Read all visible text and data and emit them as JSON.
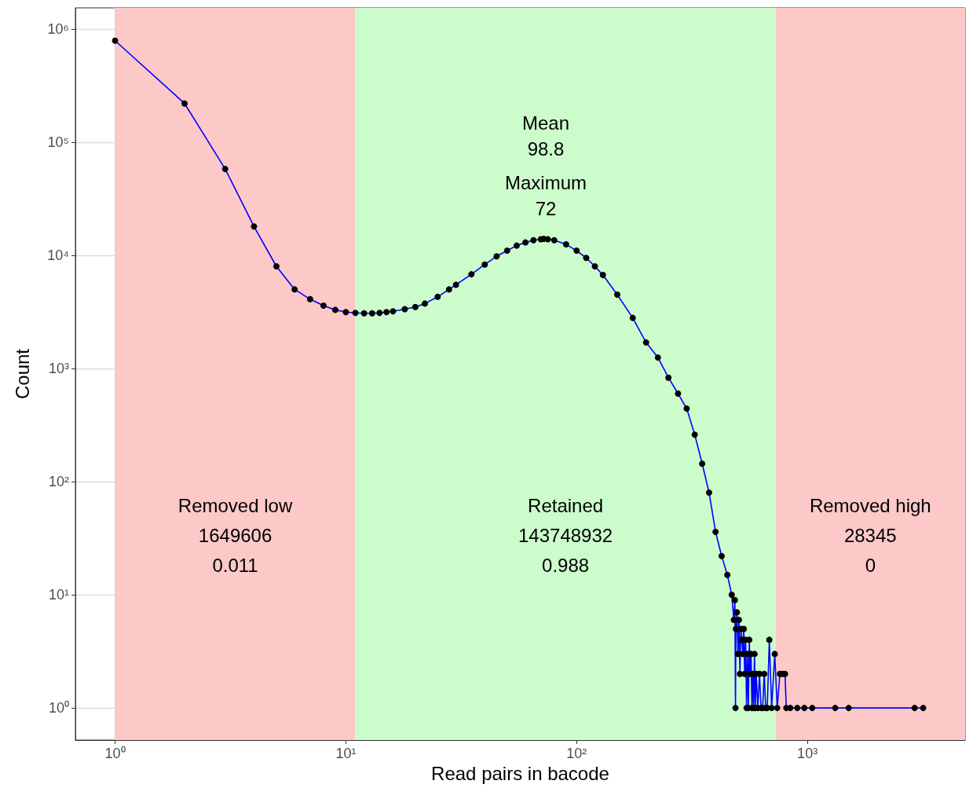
{
  "chart_data": {
    "type": "line",
    "xlabel": "Read pairs in bacode",
    "ylabel": "Count",
    "log": "xy",
    "grid": true,
    "marker": "circle",
    "line_style": "solid",
    "xlim": [
      0.673,
      4826
    ],
    "ylim": [
      0.52,
      1540000
    ],
    "xticks": [
      {
        "value": 1,
        "label": "10⁰"
      },
      {
        "value": 10,
        "label": "10¹"
      },
      {
        "value": 100,
        "label": "10²"
      },
      {
        "value": 1000,
        "label": "10³"
      }
    ],
    "yticks": [
      {
        "value": 1,
        "label": "10⁰"
      },
      {
        "value": 10,
        "label": "10¹"
      },
      {
        "value": 100,
        "label": "10²"
      },
      {
        "value": 1000,
        "label": "10³"
      },
      {
        "value": 10000,
        "label": "10⁴"
      },
      {
        "value": 100000,
        "label": "10⁵"
      },
      {
        "value": 1000000,
        "label": "10⁶"
      }
    ],
    "series": [
      {
        "color": "#0000ff",
        "x": [
          1,
          2,
          3,
          4,
          5,
          6,
          7,
          8,
          9,
          10,
          11,
          12,
          13,
          14,
          15,
          16,
          18,
          20,
          22,
          25,
          28,
          30,
          35,
          40,
          45,
          50,
          55,
          60,
          65,
          70,
          72,
          75,
          80,
          90,
          100,
          110,
          120,
          130,
          150,
          175,
          200,
          225,
          250,
          275,
          300,
          325,
          350,
          375,
          400,
          425,
          450,
          470,
          480,
          485,
          488,
          490,
          495,
          500,
          505,
          510,
          515,
          520,
          525,
          530,
          535,
          540,
          545,
          550,
          555,
          560,
          565,
          570,
          575,
          580,
          585,
          590,
          595,
          600,
          610,
          620,
          630,
          640,
          650,
          660,
          670,
          684,
          700,
          722,
          740,
          760,
          780,
          800,
          810,
          843,
          904,
          970,
          1050,
          1320,
          1510,
          2915,
          3175
        ],
        "values": [
          790000,
          220000,
          58000,
          18000,
          8000,
          5000,
          4100,
          3600,
          3300,
          3150,
          3100,
          3080,
          3080,
          3100,
          3150,
          3200,
          3350,
          3500,
          3750,
          4300,
          5000,
          5500,
          6800,
          8300,
          9800,
          11000,
          12200,
          13000,
          13600,
          13900,
          14000,
          13900,
          13600,
          12500,
          11000,
          9500,
          8000,
          6700,
          4500,
          2800,
          1700,
          1250,
          830,
          600,
          443,
          260,
          144,
          80,
          36,
          22,
          15,
          10,
          6,
          9,
          1,
          5,
          7,
          3,
          6,
          2,
          5,
          4,
          3,
          5,
          2,
          4,
          1,
          3,
          1,
          4,
          2,
          3,
          1,
          2,
          1,
          3,
          1,
          2,
          1,
          2,
          1,
          1,
          2,
          1,
          1,
          4,
          1,
          3,
          1,
          2,
          2,
          2,
          1,
          1,
          1,
          1,
          1,
          1,
          1,
          1,
          1
        ]
      }
    ],
    "bands": [
      {
        "axis": "x",
        "from": 1,
        "to": 11,
        "label": "Removed low\n1649606\n0.011",
        "color": "#fcc8c8"
      },
      {
        "axis": "x",
        "from": 11,
        "to": 728,
        "label": "Retained\n143748932\n0.988",
        "color": "#ccfccc"
      },
      {
        "axis": "x",
        "from": 728,
        "to": 4826,
        "label": "Removed high\n28345\n0",
        "color": "#fcc8c8"
      }
    ],
    "annotations": [
      "Mean\n98.8",
      "Maximum\n72"
    ]
  }
}
